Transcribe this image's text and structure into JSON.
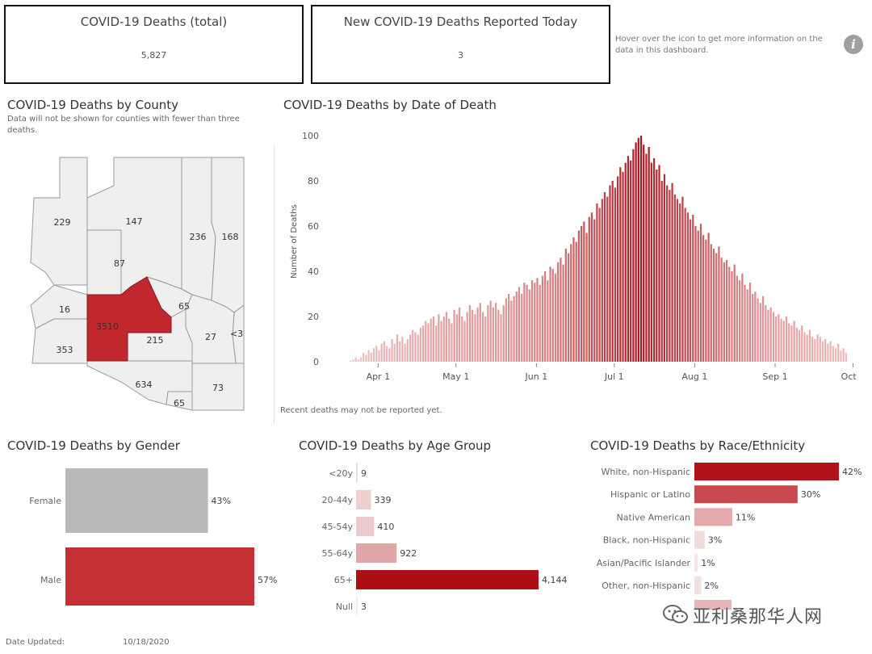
{
  "kpis": {
    "total_title": "COVID-19 Deaths (total)",
    "total_value": "5,827",
    "today_title": "New COVID-19 Deaths Reported Today",
    "today_value": "3"
  },
  "hover_note": "Hover over the icon to get more information on the data in this dashboard.",
  "info_icon": "info-icon",
  "county": {
    "title": "COVID-19 Deaths by County",
    "note": "Data will not be shown for counties with fewer than three deaths.",
    "labels": [
      "229",
      "147",
      "236",
      "168",
      "87",
      "16",
      "3510",
      "65",
      "353",
      "215",
      "27",
      "<3",
      "634",
      "73",
      "65"
    ],
    "highlight_color": "#c0282d"
  },
  "chart_data": [
    {
      "type": "bar",
      "title": "COVID-19 Deaths by Date of Death",
      "ylabel": "Number of Deaths",
      "ylim": [
        0,
        100
      ],
      "yticks": [
        "0",
        "20",
        "40",
        "60",
        "80",
        "100"
      ],
      "x_tick_labels": [
        "Apr 1",
        "May 1",
        "Jun 1",
        "Jul 1",
        "Aug 1",
        "Sep 1",
        "Oct 1"
      ],
      "x_tick_day_offsets": [
        0,
        30,
        61,
        91,
        122,
        153,
        183
      ],
      "start_date": "2020-03-21",
      "values": [
        0,
        1,
        2,
        1,
        2,
        4,
        3,
        5,
        4,
        6,
        7,
        5,
        8,
        9,
        7,
        6,
        10,
        8,
        12,
        9,
        11,
        8,
        10,
        12,
        14,
        13,
        12,
        15,
        16,
        18,
        17,
        19,
        20,
        16,
        21,
        18,
        20,
        22,
        19,
        17,
        23,
        21,
        24,
        20,
        18,
        22,
        25,
        23,
        21,
        24,
        26,
        22,
        20,
        25,
        27,
        24,
        26,
        23,
        21,
        25,
        28,
        30,
        27,
        29,
        31,
        33,
        30,
        35,
        34,
        32,
        36,
        35,
        37,
        34,
        38,
        40,
        36,
        42,
        41,
        39,
        44,
        46,
        43,
        50,
        48,
        52,
        55,
        53,
        58,
        60,
        62,
        57,
        64,
        66,
        63,
        70,
        68,
        72,
        75,
        73,
        78,
        80,
        77,
        82,
        86,
        84,
        88,
        91,
        89,
        94,
        97,
        99,
        100,
        96,
        92,
        95,
        88,
        90,
        85,
        87,
        80,
        83,
        78,
        76,
        79,
        74,
        72,
        70,
        73,
        68,
        66,
        63,
        65,
        60,
        58,
        61,
        56,
        54,
        57,
        52,
        50,
        48,
        51,
        46,
        44,
        45,
        42,
        40,
        43,
        38,
        36,
        39,
        34,
        32,
        35,
        30,
        31,
        28,
        26,
        29,
        25,
        23,
        24,
        22,
        20,
        21,
        19,
        18,
        20,
        17,
        16,
        18,
        15,
        14,
        16,
        13,
        12,
        14,
        11,
        10,
        12,
        11,
        9,
        10,
        8,
        9,
        7,
        6,
        8,
        5,
        6,
        4
      ],
      "note": "Recent deaths may not be reported yet.",
      "color_range": [
        "#f0c4c6",
        "#a8141c"
      ]
    },
    {
      "type": "bar",
      "orientation": "horizontal",
      "title": "COVID-19 Deaths by Gender",
      "categories": [
        "Female",
        "Male"
      ],
      "values": [
        43,
        57
      ],
      "labels": [
        "43%",
        "57%"
      ],
      "colors": [
        "#b7b9bb",
        "#c62f34"
      ]
    },
    {
      "type": "bar",
      "orientation": "horizontal",
      "title": "COVID-19 Deaths by Age Group",
      "categories": [
        "<20y",
        "20-44y",
        "45-54y",
        "55-64y",
        "65+",
        "Null"
      ],
      "values": [
        9,
        339,
        410,
        922,
        4144,
        3
      ],
      "labels": [
        "9",
        "339",
        "410",
        "922",
        "4,144",
        "3"
      ],
      "colors": [
        "#f1dcdd",
        "#eecfd0",
        "#eacacb",
        "#e0a6a8",
        "#ae0e16",
        "#f6eaea"
      ]
    },
    {
      "type": "bar",
      "orientation": "horizontal",
      "title": "COVID-19 Deaths by Race/Ethnicity",
      "categories": [
        "White, non-Hispanic",
        "Hispanic or Latino",
        "Native American",
        "Black, non-Hispanic",
        "Asian/Pacific Islander",
        "Other, non-Hispanic"
      ],
      "values": [
        42,
        30,
        11,
        3,
        1,
        2
      ],
      "labels": [
        "42%",
        "30%",
        "11%",
        "3%",
        "1%",
        "2%"
      ],
      "colors": [
        "#b0121a",
        "#c84a4e",
        "#e3a9ab",
        "#f0dada",
        "#f5e6e6",
        "#f2dfdf"
      ]
    }
  ],
  "footer": {
    "date_label": "Date Updated:",
    "date_value": "10/18/2020"
  },
  "watermark": {
    "icon": "wechat-icon",
    "text": "亚利桑那华人网"
  }
}
